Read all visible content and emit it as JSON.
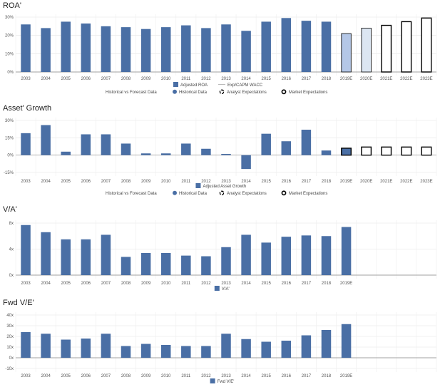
{
  "colors": {
    "historical": "#4a6fa5",
    "forecast_2019": "#b4c7e7",
    "forecast_2020": "#dce6f2",
    "outline": "#000000"
  },
  "chart_data": [
    {
      "type": "bar",
      "title": "ROA'",
      "categories": [
        "2003",
        "2004",
        "2005",
        "2006",
        "2007",
        "2008",
        "2009",
        "2010",
        "2011",
        "2012",
        "2013",
        "2014",
        "2015",
        "2016",
        "2017",
        "2018",
        "2019E",
        "2020E",
        "2021E",
        "2022E",
        "2023E"
      ],
      "series": [
        {
          "name": "Adjusted ROA",
          "values": [
            26,
            24,
            27.5,
            26.5,
            25,
            24.5,
            23.5,
            24.5,
            25.5,
            24,
            26,
            22.5,
            27.5,
            29.5,
            28,
            27.5,
            null,
            null,
            null,
            null,
            null
          ]
        },
        {
          "name": "Analyst Expectations",
          "values": [
            null,
            null,
            null,
            null,
            null,
            null,
            null,
            null,
            null,
            null,
            null,
            null,
            null,
            null,
            null,
            null,
            21,
            24,
            null,
            null,
            null
          ]
        },
        {
          "name": "Market Expectations",
          "values": [
            null,
            null,
            null,
            null,
            null,
            null,
            null,
            null,
            null,
            null,
            null,
            null,
            null,
            null,
            null,
            null,
            null,
            null,
            25.5,
            27.5,
            29.5
          ]
        }
      ],
      "ylim": [
        0,
        30
      ],
      "yticks": [
        "0%",
        "10%",
        "20%",
        "30%"
      ],
      "ytick_values": [
        0,
        10,
        20,
        30
      ],
      "legend_row1": [
        "Adjusted ROA",
        "Exp/CAPM WACC"
      ],
      "legend_row2": [
        "Historical vs Forecast Data",
        "Historical Data",
        "Analyst Expectations",
        "Market Expectations"
      ]
    },
    {
      "type": "bar",
      "title": "Asset' Growth",
      "categories": [
        "2003",
        "2004",
        "2005",
        "2006",
        "2007",
        "2008",
        "2009",
        "2010",
        "2011",
        "2012",
        "2013",
        "2014",
        "2015",
        "2016",
        "2017",
        "2018",
        "2019E",
        "2020E",
        "2021E",
        "2022E",
        "2023E"
      ],
      "series": [
        {
          "name": "Adjusted Asset Growth",
          "values": [
            19,
            26,
            3,
            18,
            18,
            10,
            1.5,
            1.5,
            10,
            5.5,
            1,
            -12,
            18.5,
            12,
            22,
            4,
            null,
            null,
            null,
            null,
            null
          ]
        },
        {
          "name": "Analyst Expectations",
          "values": [
            null,
            null,
            null,
            null,
            null,
            null,
            null,
            null,
            null,
            null,
            null,
            null,
            null,
            null,
            null,
            null,
            6,
            null,
            null,
            null,
            null
          ]
        },
        {
          "name": "Market Expectations",
          "values": [
            null,
            null,
            null,
            null,
            null,
            null,
            null,
            null,
            null,
            null,
            null,
            null,
            null,
            null,
            null,
            null,
            6,
            7,
            7,
            7,
            7
          ]
        }
      ],
      "ylim": [
        -15,
        30
      ],
      "yticks": [
        "-15%",
        "0%",
        "15%",
        "30%"
      ],
      "ytick_values": [
        -15,
        0,
        15,
        30
      ],
      "legend_row1": [
        "Adjusted Asset Growth"
      ],
      "legend_row2": [
        "Historical vs Forecast Data",
        "Historical Data",
        "Analyst Expectations",
        "Market Expectations"
      ]
    },
    {
      "type": "bar",
      "title": "V/A'",
      "categories": [
        "2003",
        "2004",
        "2005",
        "2006",
        "2007",
        "2008",
        "2009",
        "2010",
        "2011",
        "2012",
        "2013",
        "2014",
        "2015",
        "2016",
        "2017",
        "2018",
        "2019E",
        "",
        "",
        "",
        ""
      ],
      "series": [
        {
          "name": "V/A'",
          "values": [
            7.7,
            6.6,
            5.5,
            5.5,
            6.2,
            2.8,
            3.4,
            3.4,
            3.0,
            2.9,
            4.3,
            6.2,
            5.0,
            5.9,
            6.1,
            6.0,
            7.4,
            null,
            null,
            null,
            null
          ]
        }
      ],
      "ylim": [
        0,
        8
      ],
      "yticks": [
        "0x",
        "4x",
        "8x"
      ],
      "ytick_values": [
        0,
        4,
        8
      ],
      "legend_row1": [
        "V/A'"
      ]
    },
    {
      "type": "bar",
      "title": "Fwd V/E'",
      "categories": [
        "2003",
        "2004",
        "2005",
        "2006",
        "2007",
        "2008",
        "2009",
        "2010",
        "2011",
        "2012",
        "2013",
        "2014",
        "2015",
        "2016",
        "2017",
        "2018",
        "2019E",
        "",
        "",
        "",
        ""
      ],
      "series": [
        {
          "name": "Fwd V/E'",
          "values": [
            24,
            22.5,
            17,
            18,
            22.5,
            11,
            13,
            12,
            11,
            11,
            22.5,
            17.5,
            15,
            16,
            21,
            26,
            31.5,
            null,
            null,
            null,
            null
          ]
        }
      ],
      "ylim": [
        -10,
        40
      ],
      "yticks": [
        "-10x",
        "0x",
        "10x",
        "20x",
        "30x",
        "40x"
      ],
      "ytick_values": [
        -10,
        0,
        10,
        20,
        30,
        40
      ],
      "legend_row1": [
        "Fwd V/E'"
      ]
    }
  ]
}
